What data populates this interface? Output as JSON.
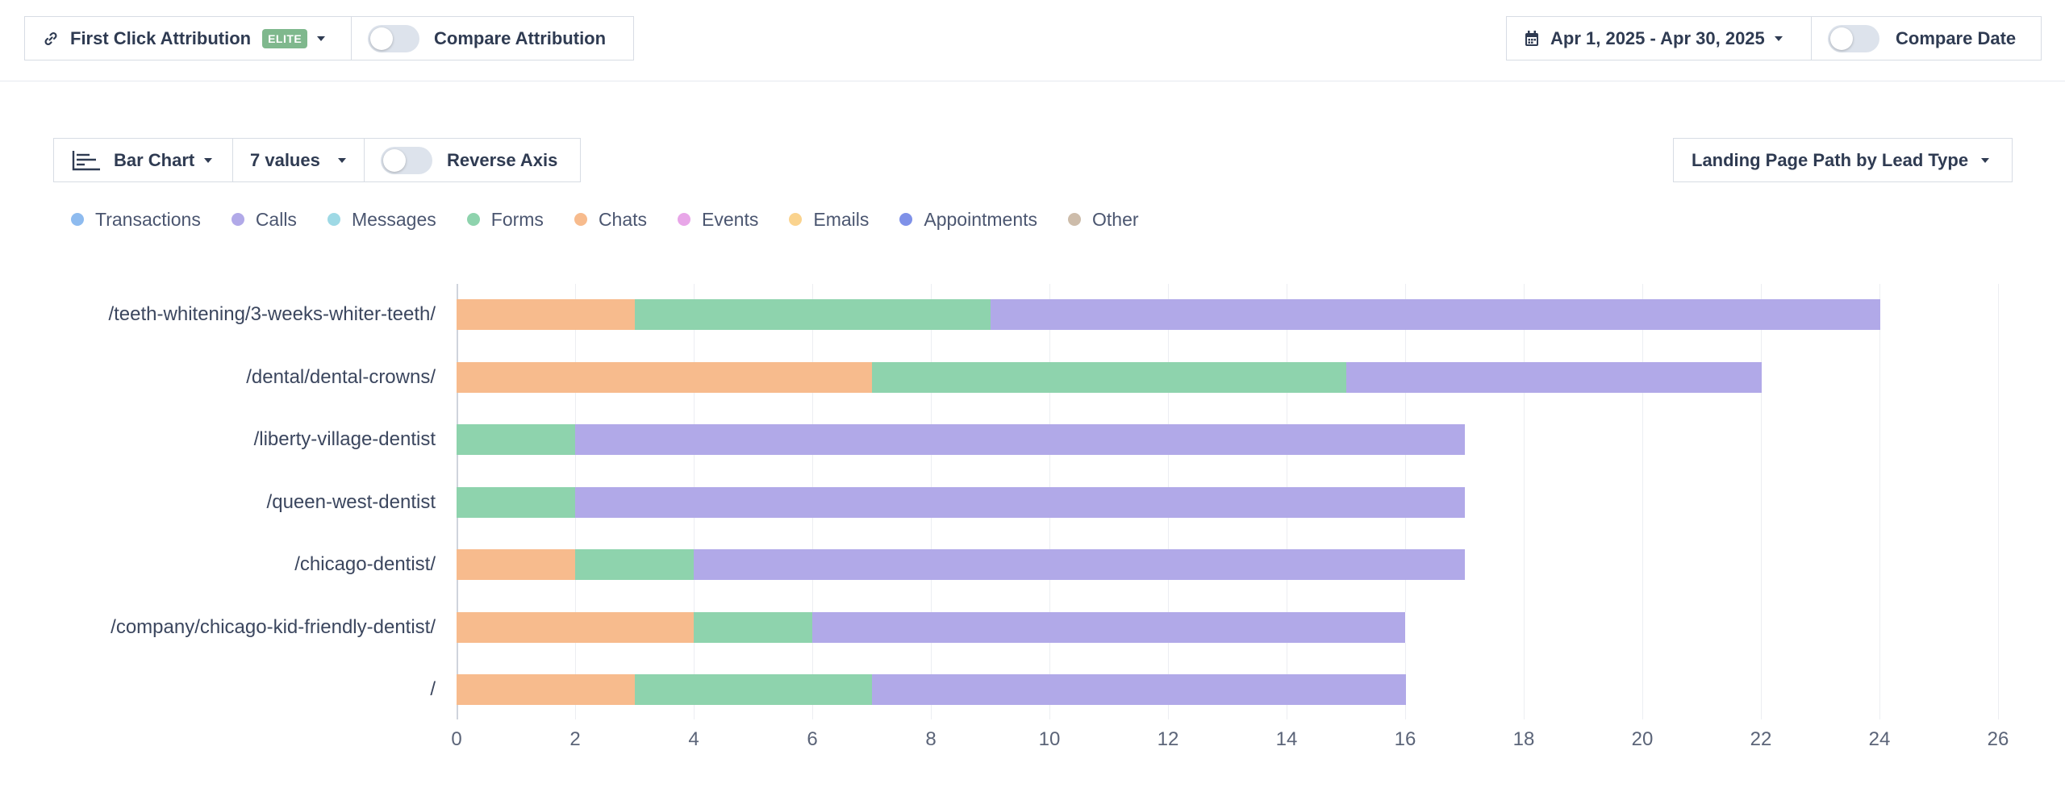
{
  "topbar": {
    "attribution_label": "First Click Attribution",
    "attribution_badge": "ELITE",
    "compare_attribution_label": "Compare Attribution",
    "date_range_label": "Apr 1, 2025 - Apr 30, 2025",
    "compare_date_label": "Compare Date"
  },
  "toolbar": {
    "chart_type_label": "Bar Chart",
    "values_count_label": "7 values",
    "reverse_axis_label": "Reverse Axis",
    "report_label": "Landing Page Path by Lead Type"
  },
  "legend": [
    {
      "name": "Transactions",
      "color": "#8ebbef"
    },
    {
      "name": "Calls",
      "color": "#b1a9e8"
    },
    {
      "name": "Messages",
      "color": "#9ed9e5"
    },
    {
      "name": "Forms",
      "color": "#8ed3ad"
    },
    {
      "name": "Chats",
      "color": "#f7bb8d"
    },
    {
      "name": "Events",
      "color": "#e8a6e8"
    },
    {
      "name": "Emails",
      "color": "#fad38e"
    },
    {
      "name": "Appointments",
      "color": "#7f91e8"
    },
    {
      "name": "Other",
      "color": "#cdbcaa"
    }
  ],
  "chart_data": {
    "type": "bar",
    "orientation": "horizontal",
    "stacked": true,
    "categories": [
      "/teeth-whitening/3-weeks-whiter-teeth/",
      "/dental/dental-crowns/",
      "/liberty-village-dentist",
      "/queen-west-dentist",
      "/chicago-dentist/",
      "/company/chicago-kid-friendly-dentist/",
      "/"
    ],
    "series": [
      {
        "name": "Chats",
        "color": "#f7bb8d",
        "values": [
          3,
          7,
          0,
          0,
          2,
          4,
          3
        ]
      },
      {
        "name": "Forms",
        "color": "#8ed3ad",
        "values": [
          6,
          8,
          2,
          2,
          2,
          2,
          4
        ]
      },
      {
        "name": "Calls",
        "color": "#b1a9e8",
        "values": [
          15,
          7,
          15,
          15,
          13,
          10,
          9
        ]
      }
    ],
    "xlim": [
      0,
      26
    ],
    "xticks": [
      "0",
      "2",
      "4",
      "6",
      "8",
      "10",
      "12",
      "14",
      "16",
      "18",
      "20",
      "22",
      "24",
      "26"
    ],
    "grid": true,
    "xlabel": "",
    "ylabel": ""
  }
}
